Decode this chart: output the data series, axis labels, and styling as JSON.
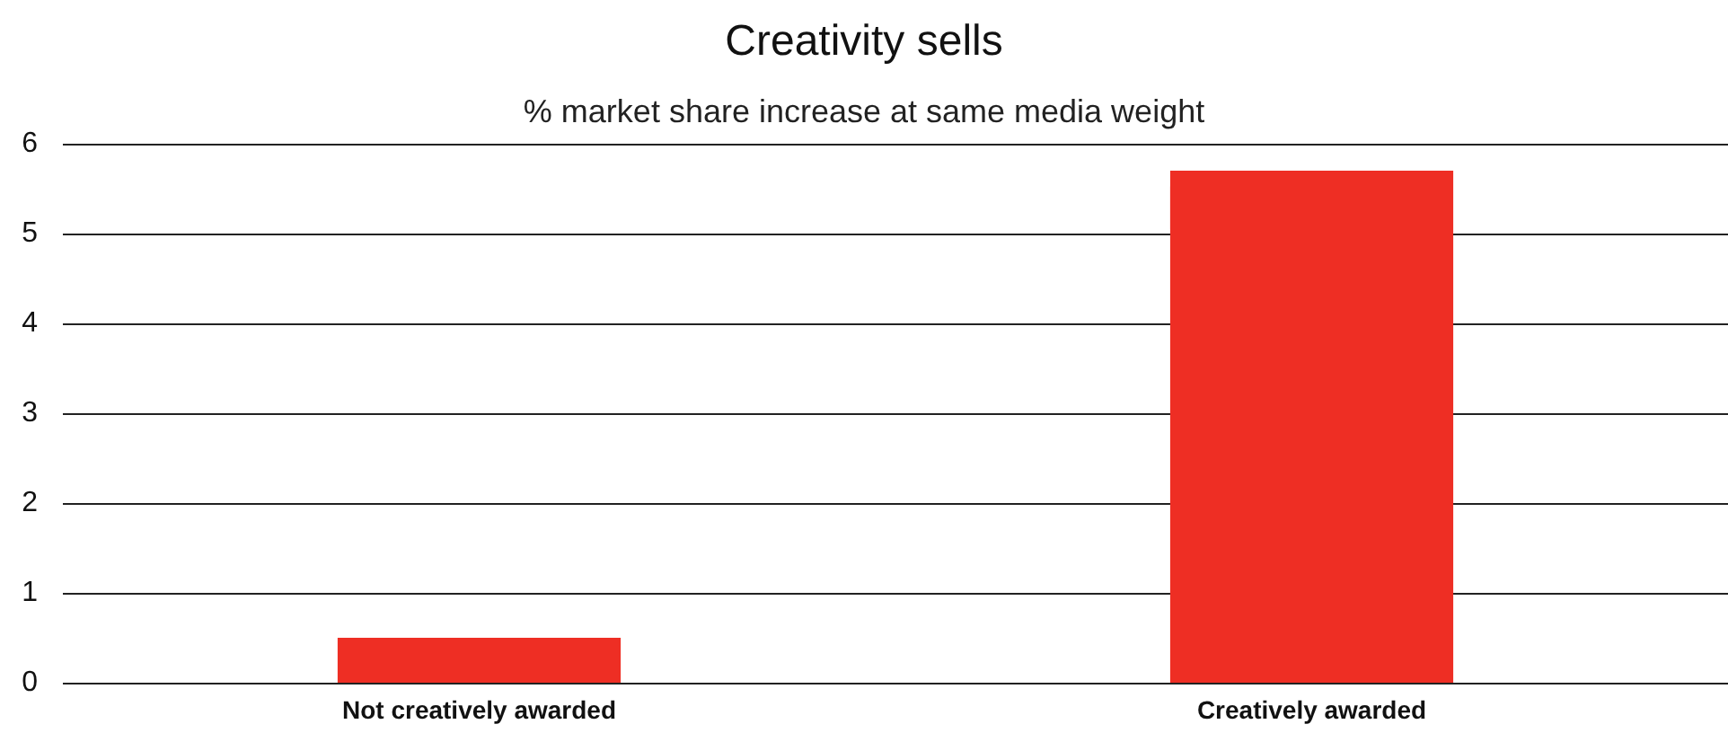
{
  "chart_data": {
    "type": "bar",
    "title": "Creativity sells",
    "subtitle": "% market share increase at same media weight",
    "categories": [
      "Not creatively awarded",
      "Creatively awarded"
    ],
    "values": [
      0.5,
      5.7
    ],
    "color": "#ee2e24",
    "ylim": [
      0,
      6
    ],
    "yticks": [
      0,
      1,
      2,
      3,
      4,
      5,
      6
    ],
    "grid": "y"
  }
}
